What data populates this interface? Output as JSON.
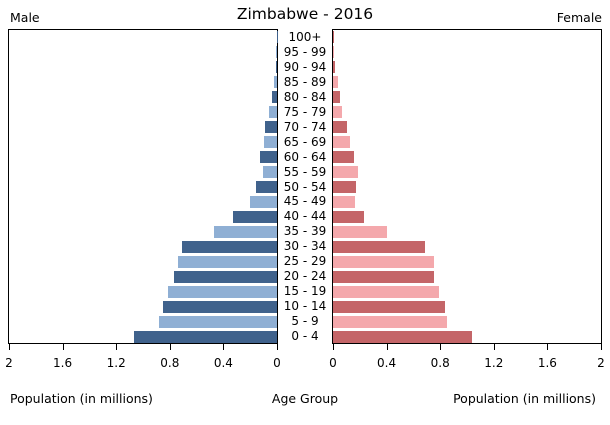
{
  "header": {
    "male_label": "Male",
    "title": "Zimbabwe - 2016",
    "female_label": "Female"
  },
  "footer": {
    "left_axis_label": "Population (in millions)",
    "center_axis_label": "Age Group",
    "right_axis_label": "Population (in millions)"
  },
  "chart_data": {
    "type": "bar",
    "subtype": "population-pyramid",
    "title": "Zimbabwe - 2016",
    "unit": "millions",
    "xlabel_left": "Population (in millions)",
    "xlabel_right": "Population (in millions)",
    "center_label": "Age Group",
    "xlim": [
      0,
      2
    ],
    "grid": false,
    "age_groups": [
      "100+",
      "95 - 99",
      "90 - 94",
      "85 - 89",
      "80 - 84",
      "75 - 79",
      "70 - 74",
      "65 - 69",
      "60 - 64",
      "55 - 59",
      "50 - 54",
      "45 - 49",
      "40 - 44",
      "35 - 39",
      "30 - 34",
      "25 - 29",
      "20 - 24",
      "15 - 19",
      "10 - 14",
      "5 - 9",
      "0 - 4"
    ],
    "series": [
      {
        "name": "Male",
        "side": "left",
        "values": [
          0.002,
          0.004,
          0.01,
          0.025,
          0.04,
          0.06,
          0.09,
          0.1,
          0.13,
          0.105,
          0.16,
          0.2,
          0.33,
          0.47,
          0.71,
          0.74,
          0.77,
          0.81,
          0.85,
          0.88,
          1.07
        ]
      },
      {
        "name": "Female",
        "side": "right",
        "values": [
          0.003,
          0.008,
          0.013,
          0.035,
          0.05,
          0.065,
          0.105,
          0.13,
          0.16,
          0.19,
          0.17,
          0.165,
          0.23,
          0.4,
          0.69,
          0.75,
          0.75,
          0.79,
          0.835,
          0.85,
          1.035
        ]
      }
    ],
    "x_ticks_left": [
      "2",
      "1.6",
      "1.2",
      "0.8",
      "0.4",
      "0"
    ],
    "x_ticks_right": [
      "0",
      "0.4",
      "0.8",
      "1.2",
      "1.6",
      "2"
    ],
    "x_tick_values_left": [
      2,
      1.6,
      1.2,
      0.8,
      0.4,
      0
    ],
    "x_tick_values_right": [
      0,
      0.4,
      0.8,
      1.2,
      1.6,
      2
    ],
    "colors": {
      "male_dark": "#40628c",
      "male_light": "#8fafd4",
      "female_dark": "#c46568",
      "female_light": "#f4a8ac",
      "axis": "#000000",
      "background": "#ffffff"
    }
  }
}
